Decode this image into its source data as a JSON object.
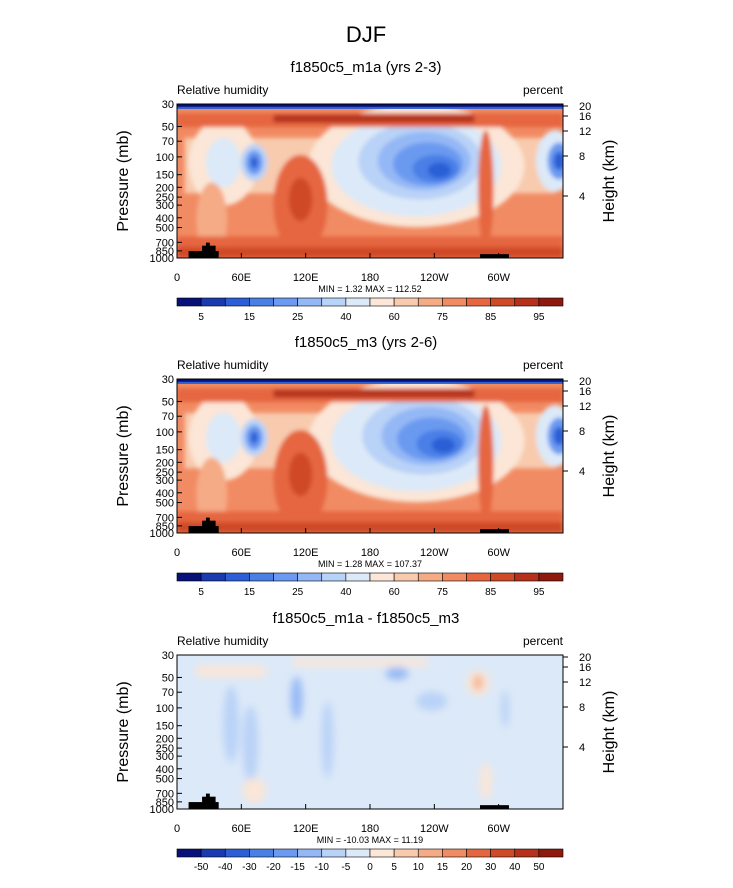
{
  "title": "DJF",
  "chart_data": [
    {
      "type": "heatmap",
      "title": "f1850c5_m1a (yrs 2-3)",
      "variable": "Relative humidity",
      "units": "percent",
      "ylabel": "Pressure (mb)",
      "ylabel_right": "Height (km)",
      "pressure_ticks": [
        "30",
        "50",
        "70",
        "100",
        "150",
        "200",
        "250",
        "300",
        "400",
        "500",
        "700",
        "850",
        "1000"
      ],
      "height_ticks": [
        "20",
        "16",
        "12",
        "8",
        "4"
      ],
      "lon_ticks": [
        "0",
        "60E",
        "120E",
        "180",
        "120W",
        "60W"
      ],
      "stats": "MIN =    1.32  MAX = 112.52",
      "colorbar": {
        "labels": [
          "5",
          "15",
          "25",
          "40",
          "60",
          "75",
          "85",
          "95"
        ],
        "colors": [
          "#08107a",
          "#1a3ab0",
          "#2c5fd6",
          "#4a7fe6",
          "#6b9af0",
          "#94b8f5",
          "#b9d2f7",
          "#dce9f8",
          "#fbe6d7",
          "#f8cbae",
          "#f5ab86",
          "#f18b63",
          "#e5663f",
          "#cf4a27",
          "#b5311b",
          "#8e1a0e"
        ]
      }
    },
    {
      "type": "heatmap",
      "title": "f1850c5_m3 (yrs 2-6)",
      "variable": "Relative humidity",
      "units": "percent",
      "ylabel": "Pressure (mb)",
      "ylabel_right": "Height (km)",
      "pressure_ticks": [
        "30",
        "50",
        "70",
        "100",
        "150",
        "200",
        "250",
        "300",
        "400",
        "500",
        "700",
        "850",
        "1000"
      ],
      "height_ticks": [
        "20",
        "16",
        "12",
        "8",
        "4"
      ],
      "lon_ticks": [
        "0",
        "60E",
        "120E",
        "180",
        "120W",
        "60W"
      ],
      "stats": "MIN =    1.28  MAX = 107.37",
      "colorbar": {
        "labels": [
          "5",
          "15",
          "25",
          "40",
          "60",
          "75",
          "85",
          "95"
        ],
        "colors": [
          "#08107a",
          "#1a3ab0",
          "#2c5fd6",
          "#4a7fe6",
          "#6b9af0",
          "#94b8f5",
          "#b9d2f7",
          "#dce9f8",
          "#fbe6d7",
          "#f8cbae",
          "#f5ab86",
          "#f18b63",
          "#e5663f",
          "#cf4a27",
          "#b5311b",
          "#8e1a0e"
        ]
      }
    },
    {
      "type": "heatmap",
      "title": "f1850c5_m1a - f1850c5_m3",
      "variable": "Relative humidity",
      "units": "percent",
      "ylabel": "Pressure (mb)",
      "ylabel_right": "Height (km)",
      "pressure_ticks": [
        "30",
        "50",
        "70",
        "100",
        "150",
        "200",
        "250",
        "300",
        "400",
        "500",
        "700",
        "850",
        "1000"
      ],
      "height_ticks": [
        "20",
        "16",
        "12",
        "8",
        "4"
      ],
      "lon_ticks": [
        "0",
        "60E",
        "120E",
        "180",
        "120W",
        "60W"
      ],
      "stats": "MIN = -10.03  MAX =  11.19",
      "colorbar": {
        "labels": [
          "-50",
          "-40",
          "-30",
          "-20",
          "-15",
          "-10",
          "-5",
          "0",
          "5",
          "10",
          "15",
          "20",
          "30",
          "40",
          "50"
        ],
        "colors": [
          "#08107a",
          "#1a3ab0",
          "#2c5fd6",
          "#4a7fe6",
          "#6b9af0",
          "#94b8f5",
          "#b9d2f7",
          "#dce9f8",
          "#fbe6d7",
          "#f8cbae",
          "#f5ab86",
          "#f18b63",
          "#e5663f",
          "#cf4a27",
          "#b5311b",
          "#8e1a0e"
        ]
      }
    }
  ]
}
